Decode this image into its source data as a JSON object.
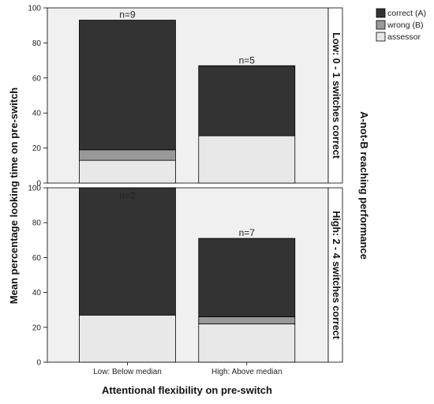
{
  "chart_data": {
    "type": "bar",
    "stacked": true,
    "ylabel": "Mean percentage looking time on pre-switch",
    "xlabel": "Attentional flexibility on pre-switch",
    "categories": [
      "Low: Below median",
      "High: Above median"
    ],
    "ylim": [
      0,
      100
    ],
    "yticks": [
      0,
      20,
      40,
      60,
      80,
      100
    ],
    "facet_title": "A-not-B reaching performance",
    "legend": {
      "placement": "top-right",
      "entries": [
        {
          "label": "correct (A)",
          "color": "#333333"
        },
        {
          "label": "wrong (B)",
          "color": "#999999"
        },
        {
          "label": "assessor",
          "color": "#e8e8e8"
        }
      ]
    },
    "panels": [
      {
        "label": "Low: 0 - 1 switches correct",
        "n_labels": [
          "n=9",
          "n=5"
        ],
        "series": [
          {
            "name": "assessor",
            "values": [
              13,
              27
            ]
          },
          {
            "name": "wrong (B)",
            "values": [
              6,
              0
            ]
          },
          {
            "name": "correct (A)",
            "values": [
              74,
              40
            ]
          }
        ]
      },
      {
        "label": "High: 2 - 4 switches correct",
        "n_labels": [
          "n=2",
          "n=7"
        ],
        "series": [
          {
            "name": "assessor",
            "values": [
              27,
              22
            ]
          },
          {
            "name": "wrong (B)",
            "values": [
              0,
              4
            ]
          },
          {
            "name": "correct (A)",
            "values": [
              73,
              45
            ]
          }
        ]
      }
    ]
  }
}
